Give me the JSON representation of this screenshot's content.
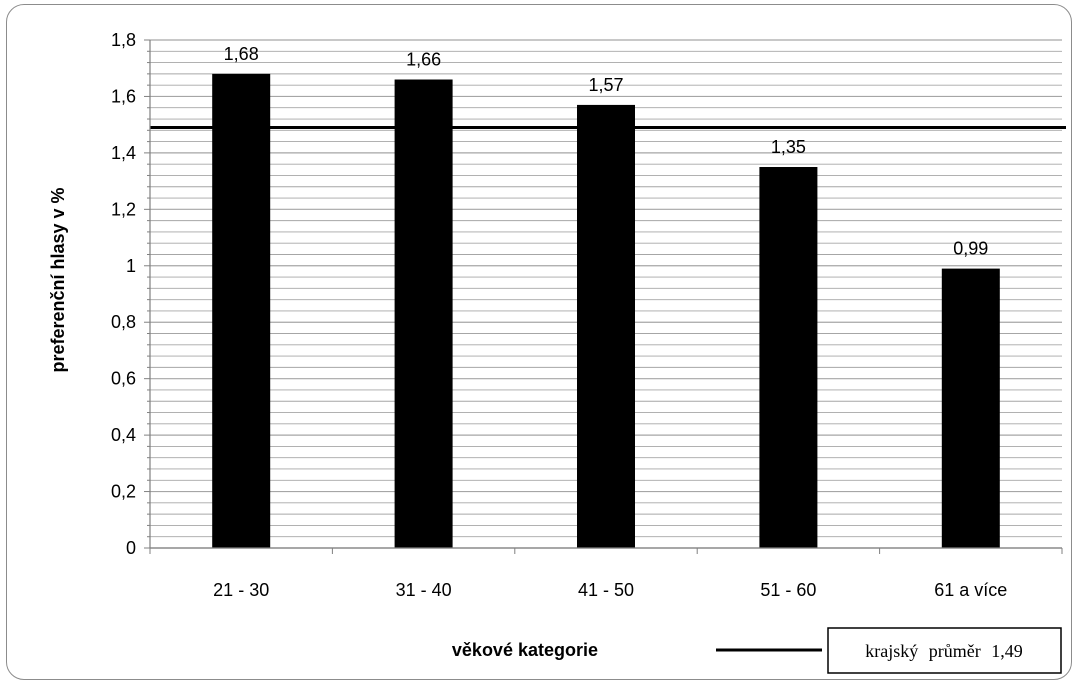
{
  "chart_data": {
    "type": "bar",
    "categories": [
      "21 - 30",
      "31 - 40",
      "41 - 50",
      "51 - 60",
      "61 a více"
    ],
    "series": [
      {
        "values": [
          1.68,
          1.66,
          1.57,
          1.35,
          0.99
        ],
        "color": "#000000"
      }
    ],
    "data_labels": [
      "1,68",
      "1,66",
      "1,57",
      "1,35",
      "0,99"
    ],
    "reference_line": {
      "value": 1.49,
      "label": "krajský  průměr  1,49",
      "color": "#000000"
    },
    "xlabel": "věkové kategorie",
    "ylabel": "preferenční hlasy v %",
    "ylim": [
      0,
      1.8
    ],
    "yticks": [
      0,
      0.2,
      0.4,
      0.6,
      0.8,
      1,
      1.2,
      1.4,
      1.6,
      1.8
    ],
    "ytick_labels": [
      "0",
      "0,2",
      "0,4",
      "0,6",
      "0,8",
      "1",
      "1,2",
      "1,4",
      "1,6",
      "1,8"
    ],
    "minor_gridlines": true,
    "grid_color": "#a6a6a6",
    "legend_position": "bottom-right"
  }
}
